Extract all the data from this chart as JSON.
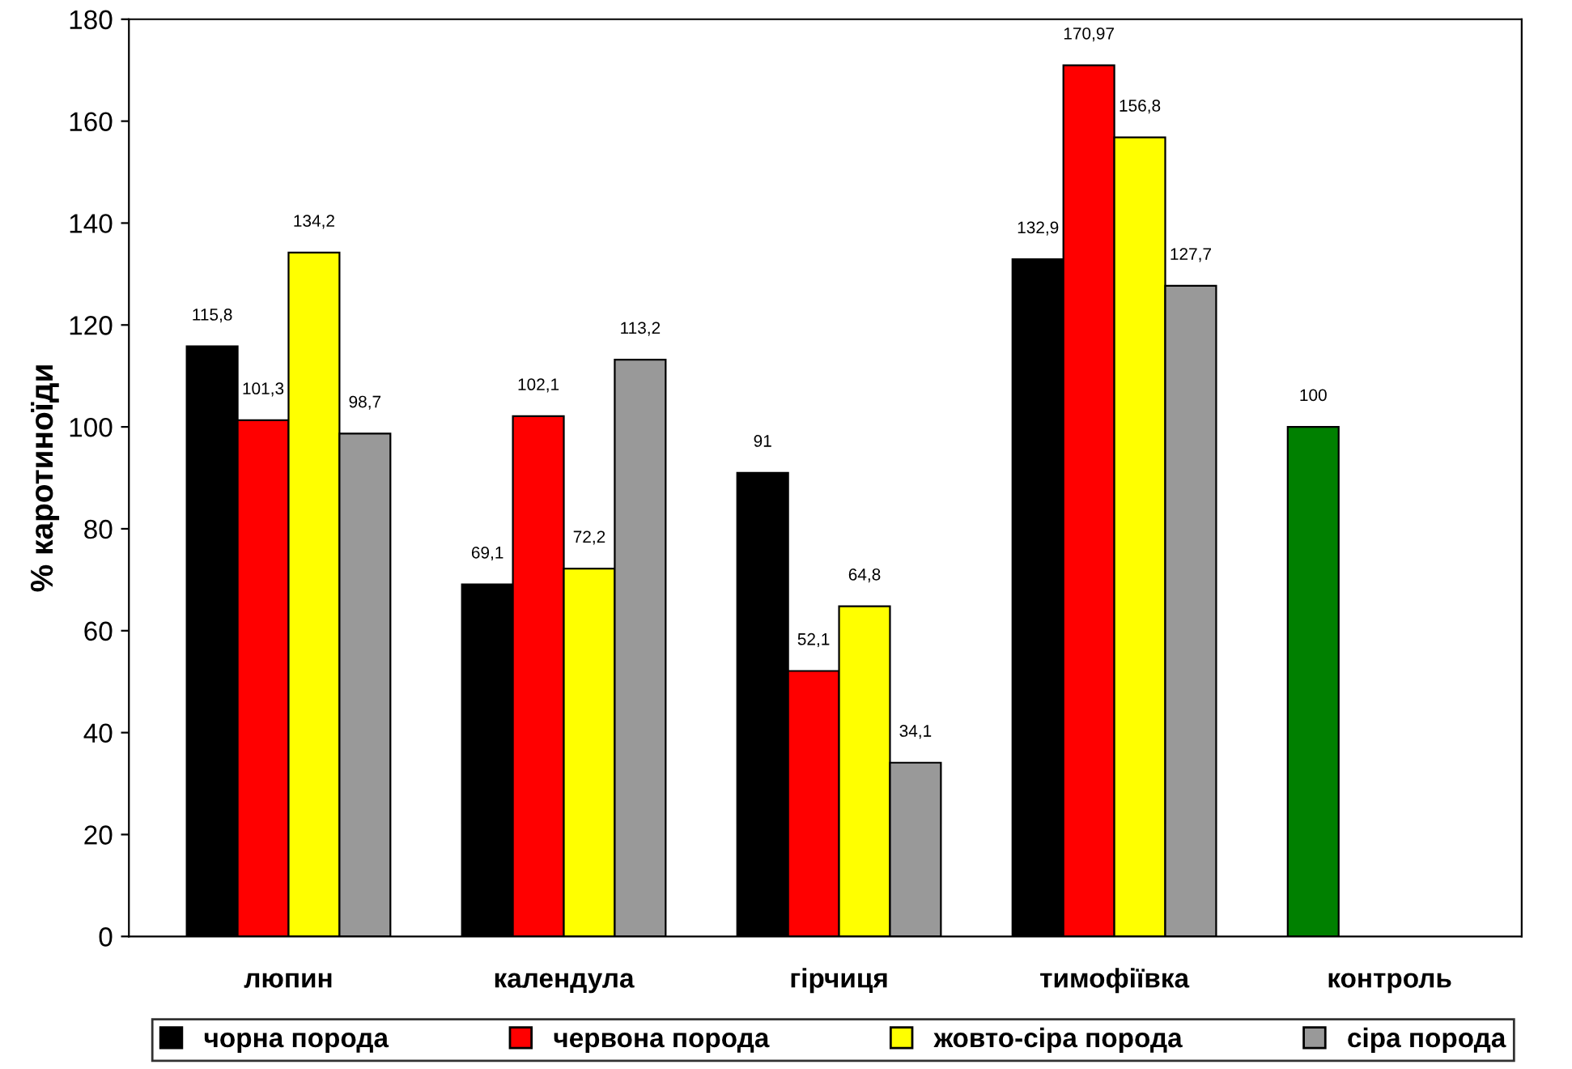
{
  "chart_data": {
    "type": "bar",
    "ylabel": "% каротиноїди",
    "categories": [
      "люпин",
      "календула",
      "гірчиця",
      "тимофіївка",
      "контроль"
    ],
    "series": [
      {
        "name": "чорна порода",
        "color": "#000000",
        "colors": [
          "#000000",
          "#000000",
          "#000000",
          "#000000",
          "#008000"
        ],
        "values": [
          115.8,
          69.1,
          91,
          132.9,
          100
        ],
        "value_labels": [
          "115,8",
          "69,1",
          "91",
          "132,9",
          "100"
        ]
      },
      {
        "name": "червона порода",
        "color": "#ff0000",
        "values": [
          101.3,
          102.1,
          52.1,
          170.97,
          null
        ],
        "value_labels": [
          "101,3",
          "102,1",
          "52,1",
          "170,97",
          null
        ]
      },
      {
        "name": "жовто-сіра порода",
        "color": "#ffff00",
        "values": [
          134.2,
          72.2,
          64.8,
          156.8,
          null
        ],
        "value_labels": [
          "134,2",
          "72,2",
          "64,8",
          "156,8",
          null
        ]
      },
      {
        "name": "сіра порода",
        "color": "#999999",
        "values": [
          98.7,
          113.2,
          34.1,
          127.7,
          null
        ],
        "value_labels": [
          "98,7",
          "113,2",
          "34,1",
          "127,7",
          null
        ]
      }
    ],
    "ylim": [
      0,
      180
    ],
    "yticks": [
      0,
      20,
      40,
      60,
      80,
      100,
      120,
      140,
      160,
      180
    ],
    "grid": false,
    "legend": "bottom"
  }
}
